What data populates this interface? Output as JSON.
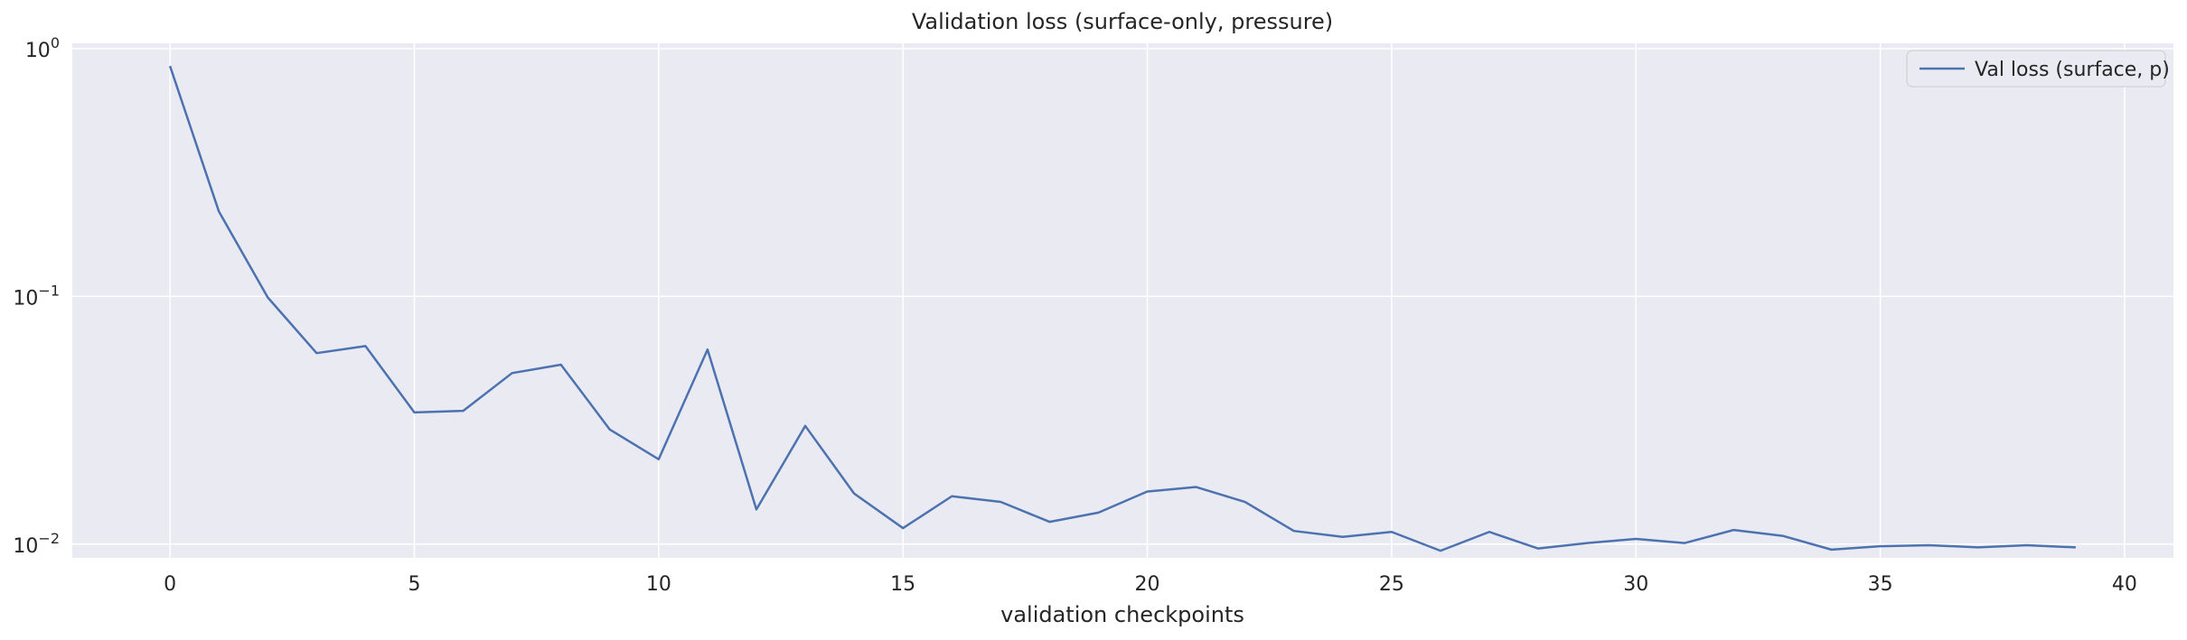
{
  "chart_data": {
    "type": "line",
    "title": "Validation loss (surface-only, pressure)",
    "xlabel": "validation checkpoints",
    "ylabel": "",
    "yscale": "log",
    "xlim": [
      -2,
      41
    ],
    "ylim": [
      0.0088,
      1.05
    ],
    "xticks": [
      0,
      5,
      10,
      15,
      20,
      25,
      30,
      35,
      40
    ],
    "xtick_labels": [
      "0",
      "5",
      "10",
      "15",
      "20",
      "25",
      "30",
      "35",
      "40"
    ],
    "yticks": [
      0.01,
      0.1,
      1
    ],
    "ytick_labels": [
      {
        "base": "10",
        "exp": "−2"
      },
      {
        "base": "10",
        "exp": "−1"
      },
      {
        "base": "10",
        "exp": "0"
      }
    ],
    "grid": true,
    "legend_position": "top-right",
    "series": [
      {
        "name": "Val loss (surface, p)",
        "color": "#4c72b0",
        "x": [
          0,
          1,
          2,
          3,
          4,
          5,
          6,
          7,
          8,
          9,
          10,
          11,
          12,
          13,
          14,
          15,
          16,
          17,
          18,
          19,
          20,
          21,
          22,
          23,
          24,
          25,
          26,
          27,
          28,
          29,
          30,
          31,
          32,
          33,
          34,
          35,
          36,
          37,
          38,
          39
        ],
        "values": [
          0.85,
          0.22,
          0.099,
          0.059,
          0.063,
          0.034,
          0.0345,
          0.049,
          0.053,
          0.029,
          0.022,
          0.061,
          0.0138,
          0.03,
          0.016,
          0.0116,
          0.0156,
          0.0148,
          0.0123,
          0.0134,
          0.0163,
          0.017,
          0.0148,
          0.0113,
          0.0107,
          0.0112,
          0.0094,
          0.0112,
          0.0096,
          0.0101,
          0.0105,
          0.0101,
          0.0114,
          0.0108,
          0.0095,
          0.0098,
          0.0099,
          0.0097,
          0.0099,
          0.0097
        ]
      }
    ]
  },
  "colors": {
    "plot_background": "#eaeaf2",
    "grid": "#ffffff",
    "legend_border": "#cccccc"
  }
}
